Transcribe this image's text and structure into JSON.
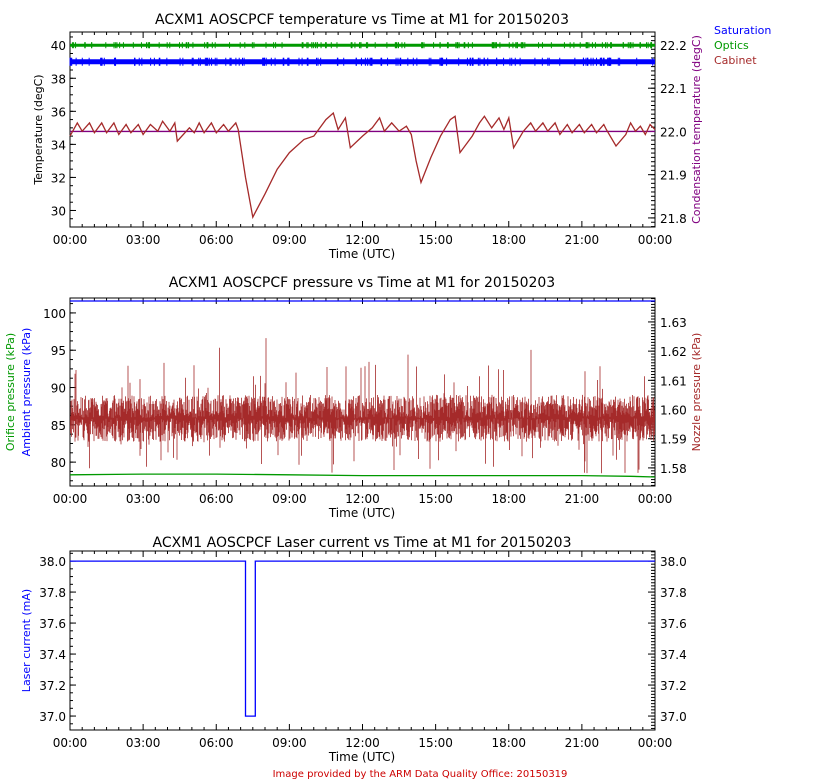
{
  "footer": "Image provided by the ARM Data Quality Office: 20150319",
  "colors": {
    "saturation": "#0000ff",
    "optics": "#009900",
    "cabinet": "#a52a2a",
    "condensation": "#800080",
    "ambient": "#0000ff",
    "orifice": "#009900",
    "nozzle": "#a52a2a",
    "laser": "#0000ff",
    "footer": "#cc0000"
  },
  "chart_data": [
    {
      "type": "line",
      "title": "ACXM1 AOSCPCF temperature vs Time at M1 for 20150203",
      "xlabel": "Time (UTC)",
      "ylabel": "Temperature (degC)",
      "ylabel_right": "Condensation temperature (degC)",
      "xlim": [
        0,
        24
      ],
      "ylim": [
        29.0,
        40.8
      ],
      "ylim_right": [
        21.779,
        22.23
      ],
      "xtick_labels": [
        "00:00",
        "03:00",
        "06:00",
        "09:00",
        "12:00",
        "15:00",
        "18:00",
        "21:00",
        "00:00"
      ],
      "ytick_labels": [
        "30",
        "32",
        "34",
        "36",
        "38",
        "40"
      ],
      "ytick_labels_right": [
        "21.8",
        "21.9",
        "22.0",
        "22.1",
        "22.2"
      ],
      "legend": {
        "placement": "top-right",
        "entries": [
          "Saturation",
          "Optics",
          "Cabinet"
        ]
      },
      "series": [
        {
          "name": "Saturation",
          "axis": "left",
          "constant": 39.0
        },
        {
          "name": "Optics",
          "axis": "left",
          "constant": 40.0
        },
        {
          "name": "Condensation",
          "axis": "right",
          "constant": 22.0
        },
        {
          "name": "Cabinet",
          "axis": "left",
          "points": [
            [
              0,
              34.5
            ],
            [
              0.3,
              35.3
            ],
            [
              0.5,
              34.8
            ],
            [
              0.8,
              35.3
            ],
            [
              1.0,
              34.7
            ],
            [
              1.3,
              35.3
            ],
            [
              1.5,
              34.7
            ],
            [
              1.8,
              35.3
            ],
            [
              2.0,
              34.6
            ],
            [
              2.3,
              35.2
            ],
            [
              2.5,
              34.7
            ],
            [
              2.8,
              35.2
            ],
            [
              3.0,
              34.6
            ],
            [
              3.3,
              35.2
            ],
            [
              3.6,
              34.8
            ],
            [
              3.8,
              35.4
            ],
            [
              4.1,
              34.8
            ],
            [
              4.3,
              35.3
            ],
            [
              4.4,
              34.2
            ],
            [
              4.9,
              35.0
            ],
            [
              5.1,
              34.7
            ],
            [
              5.3,
              35.3
            ],
            [
              5.5,
              34.7
            ],
            [
              5.8,
              35.3
            ],
            [
              6.0,
              34.7
            ],
            [
              6.3,
              35.2
            ],
            [
              6.5,
              34.8
            ],
            [
              6.8,
              35.3
            ],
            [
              6.9,
              34.9
            ],
            [
              7.2,
              32.0
            ],
            [
              7.5,
              29.6
            ],
            [
              8.0,
              31.0
            ],
            [
              8.5,
              32.5
            ],
            [
              9.0,
              33.5
            ],
            [
              9.6,
              34.3
            ],
            [
              10.0,
              34.5
            ],
            [
              10.5,
              35.5
            ],
            [
              10.8,
              35.9
            ],
            [
              11.0,
              34.9
            ],
            [
              11.3,
              35.6
            ],
            [
              11.5,
              33.8
            ],
            [
              12.0,
              34.5
            ],
            [
              12.4,
              35.0
            ],
            [
              12.7,
              35.6
            ],
            [
              12.9,
              34.8
            ],
            [
              13.2,
              35.3
            ],
            [
              13.5,
              34.8
            ],
            [
              13.8,
              35.1
            ],
            [
              14.0,
              34.6
            ],
            [
              14.2,
              33.0
            ],
            [
              14.4,
              31.7
            ],
            [
              14.8,
              33.2
            ],
            [
              15.2,
              34.5
            ],
            [
              15.6,
              35.5
            ],
            [
              15.8,
              35.7
            ],
            [
              16.0,
              33.5
            ],
            [
              16.5,
              34.5
            ],
            [
              16.8,
              35.3
            ],
            [
              17.0,
              35.7
            ],
            [
              17.3,
              35.0
            ],
            [
              17.6,
              35.6
            ],
            [
              17.8,
              34.9
            ],
            [
              18.0,
              35.6
            ],
            [
              18.2,
              33.8
            ],
            [
              18.6,
              34.8
            ],
            [
              18.9,
              35.3
            ],
            [
              19.1,
              34.8
            ],
            [
              19.4,
              35.3
            ],
            [
              19.6,
              34.8
            ],
            [
              19.9,
              35.3
            ],
            [
              20.1,
              34.6
            ],
            [
              20.4,
              35.2
            ],
            [
              20.6,
              34.7
            ],
            [
              20.9,
              35.2
            ],
            [
              21.1,
              34.7
            ],
            [
              21.4,
              35.2
            ],
            [
              21.6,
              34.7
            ],
            [
              21.9,
              35.2
            ],
            [
              22.0,
              34.9
            ],
            [
              22.4,
              33.9
            ],
            [
              22.8,
              34.6
            ],
            [
              23.0,
              35.3
            ],
            [
              23.2,
              34.8
            ],
            [
              23.4,
              35.1
            ],
            [
              23.6,
              34.6
            ],
            [
              23.8,
              35.2
            ],
            [
              24,
              34.9
            ]
          ]
        }
      ]
    },
    {
      "type": "line",
      "title": "ACXM1 AOSCPCF pressure vs Time at M1 for 20150203",
      "xlabel": "Time (UTC)",
      "ylabel": "Ambient pressure (kPa)",
      "ylabel2": "Orifice pressure (kPa)",
      "ylabel_right": "Nozzle pressure (kPa)",
      "xlim": [
        0,
        24
      ],
      "ylim": [
        76.8,
        102.0
      ],
      "ylim_right": [
        1.5738,
        1.6382
      ],
      "xtick_labels": [
        "00:00",
        "03:00",
        "06:00",
        "09:00",
        "12:00",
        "15:00",
        "18:00",
        "21:00",
        "00:00"
      ],
      "ytick_labels": [
        "80",
        "85",
        "90",
        "95",
        "100"
      ],
      "ytick_labels_right": [
        "1.58",
        "1.59",
        "1.60",
        "1.61",
        "1.62",
        "1.63"
      ],
      "series": [
        {
          "name": "Ambient",
          "axis": "left",
          "constant": 101.6
        },
        {
          "name": "Orifice",
          "axis": "left",
          "points": [
            [
              0,
              78.3
            ],
            [
              3,
              78.4
            ],
            [
              6,
              78.4
            ],
            [
              9,
              78.3
            ],
            [
              12,
              78.2
            ],
            [
              15,
              78.2
            ],
            [
              18,
              78.2
            ],
            [
              21,
              78.2
            ],
            [
              23,
              78.1
            ],
            [
              24,
              78.0
            ]
          ]
        },
        {
          "name": "Nozzle",
          "axis": "right",
          "mean": 1.597,
          "typical_range": [
            1.589,
            1.605
          ],
          "spike_range": [
            1.578,
            1.626
          ]
        }
      ]
    },
    {
      "type": "line",
      "title": "ACXM1 AOSCPCF Laser current vs Time at M1 for 20150203",
      "xlabel": "Time (UTC)",
      "ylabel": "Laser current (mA)",
      "xlim": [
        0,
        24
      ],
      "ylim": [
        36.91,
        38.065
      ],
      "xtick_labels": [
        "00:00",
        "03:00",
        "06:00",
        "09:00",
        "12:00",
        "15:00",
        "18:00",
        "21:00",
        "00:00"
      ],
      "ytick_labels": [
        "37.0",
        "37.2",
        "37.4",
        "37.6",
        "37.8",
        "38.0"
      ],
      "ytick_labels_right": [
        "37.0",
        "37.2",
        "37.4",
        "37.6",
        "37.8",
        "38.0"
      ],
      "series": [
        {
          "name": "Laser current",
          "axis": "left",
          "points": [
            [
              0,
              38.0
            ],
            [
              7.2,
              38.0
            ],
            [
              7.2,
              37.0
            ],
            [
              7.6,
              37.0
            ],
            [
              7.6,
              38.0
            ],
            [
              24,
              38.0
            ]
          ]
        }
      ]
    }
  ]
}
